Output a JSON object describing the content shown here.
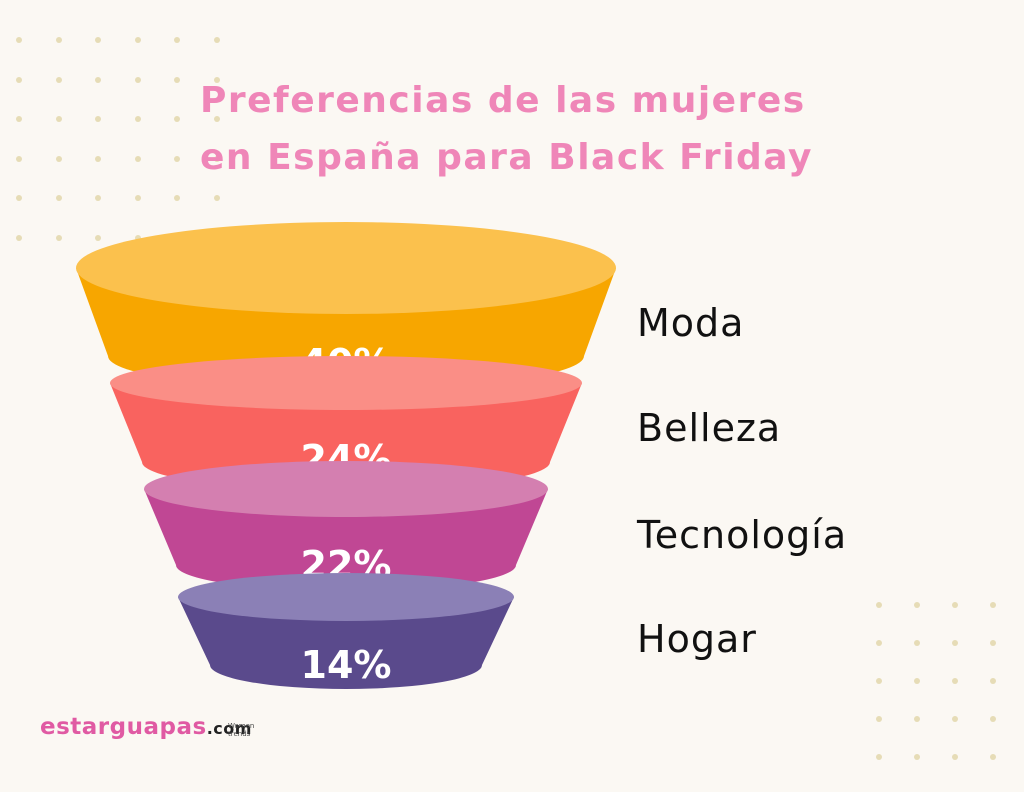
{
  "title": "Preferencias de las mujeres en España para Black Friday",
  "brand": {
    "name": "estarguapas",
    "tld": ".com",
    "tagline": "Women trends"
  },
  "colors": {
    "title": "#ef86b8",
    "background": "#fbf8f3",
    "dots": "#e6dcb6"
  },
  "chart_data": {
    "type": "funnel",
    "title": "Preferencias de las mujeres en España para Black Friday",
    "unit": "%",
    "categories": [
      "Moda",
      "Belleza",
      "Tecnología",
      "Hogar"
    ],
    "values": [
      40,
      24,
      22,
      14
    ],
    "value_labels": [
      "40%",
      "24%",
      "22%",
      "14%"
    ],
    "colors": [
      {
        "side": "#f7a600",
        "top": "#fbc14d"
      },
      {
        "side": "#f9635f",
        "top": "#fa8e86"
      },
      {
        "side": "#c04794",
        "top": "#d47fb0"
      },
      {
        "side": "#5a4a8c",
        "top": "#8b80b6"
      }
    ],
    "legend_position": "right"
  }
}
